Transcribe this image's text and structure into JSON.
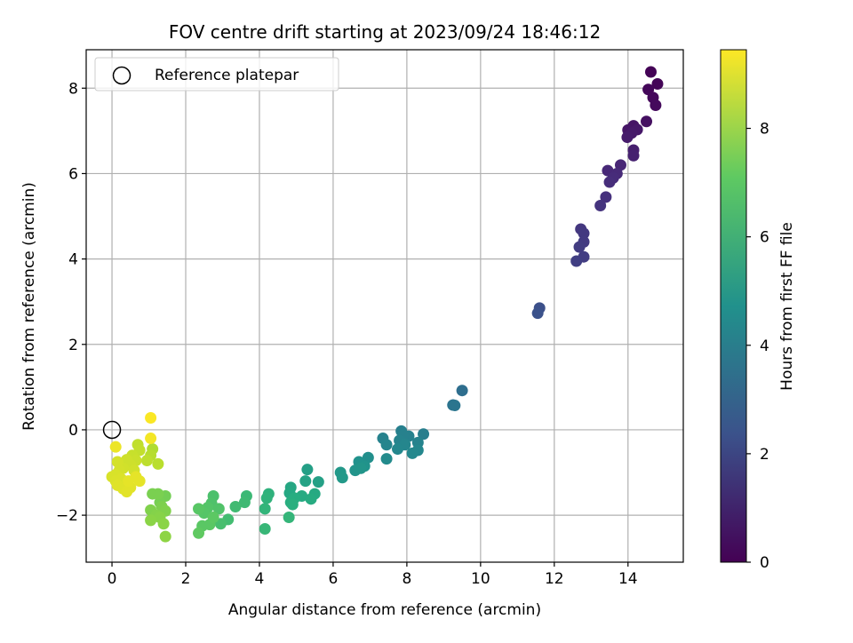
{
  "chart_data": {
    "type": "scatter",
    "title": "FOV centre drift starting at 2023/09/24 18:46:12",
    "xlabel": "Angular distance from reference (arcmin)",
    "ylabel": "Rotation from reference (arcmin)",
    "xlim": [
      -0.7,
      15.5
    ],
    "ylim": [
      -3.1,
      8.9
    ],
    "xticks": [
      0,
      2,
      4,
      6,
      8,
      10,
      12,
      14
    ],
    "xtick_labels": [
      "0",
      "2",
      "4",
      "6",
      "8",
      "10",
      "12",
      "14"
    ],
    "yticks": [
      -2,
      0,
      2,
      4,
      6,
      8
    ],
    "ytick_labels": [
      "−2",
      "0",
      "2",
      "4",
      "6",
      "8"
    ],
    "grid": true,
    "legend": {
      "placement": "upper-left",
      "entries": [
        "Reference platepar"
      ]
    },
    "reference": {
      "x": 0,
      "y": 0,
      "name": "Reference platepar"
    },
    "colorbar": {
      "label": "Hours from first FF file",
      "colormap": "viridis",
      "range": [
        0,
        9.45
      ],
      "ticks": [
        0,
        2,
        4,
        6,
        8
      ],
      "tick_labels": [
        "0",
        "2",
        "4",
        "6",
        "8"
      ]
    },
    "points": [
      {
        "x": 14.62,
        "y": 8.38,
        "c": 0.05
      },
      {
        "x": 14.8,
        "y": 8.1,
        "c": 0.1
      },
      {
        "x": 14.55,
        "y": 7.97,
        "c": 0.15
      },
      {
        "x": 14.68,
        "y": 7.78,
        "c": 0.2
      },
      {
        "x": 14.75,
        "y": 7.6,
        "c": 0.25
      },
      {
        "x": 14.5,
        "y": 7.22,
        "c": 0.4
      },
      {
        "x": 14.15,
        "y": 7.12,
        "c": 0.5
      },
      {
        "x": 14.0,
        "y": 7.02,
        "c": 0.55
      },
      {
        "x": 14.25,
        "y": 7.03,
        "c": 0.6
      },
      {
        "x": 14.1,
        "y": 6.95,
        "c": 0.65
      },
      {
        "x": 13.98,
        "y": 6.85,
        "c": 0.7
      },
      {
        "x": 14.15,
        "y": 6.55,
        "c": 0.8
      },
      {
        "x": 14.15,
        "y": 6.42,
        "c": 0.85
      },
      {
        "x": 13.8,
        "y": 6.2,
        "c": 1.0
      },
      {
        "x": 13.45,
        "y": 6.07,
        "c": 1.05
      },
      {
        "x": 13.7,
        "y": 6.0,
        "c": 1.1
      },
      {
        "x": 13.6,
        "y": 5.9,
        "c": 1.15
      },
      {
        "x": 13.5,
        "y": 5.8,
        "c": 1.2
      },
      {
        "x": 13.4,
        "y": 5.45,
        "c": 1.3
      },
      {
        "x": 13.25,
        "y": 5.25,
        "c": 1.4
      },
      {
        "x": 12.72,
        "y": 4.7,
        "c": 1.5
      },
      {
        "x": 12.8,
        "y": 4.6,
        "c": 1.55
      },
      {
        "x": 12.8,
        "y": 4.4,
        "c": 1.6
      },
      {
        "x": 12.68,
        "y": 4.28,
        "c": 1.65
      },
      {
        "x": 12.8,
        "y": 4.05,
        "c": 1.7
      },
      {
        "x": 12.6,
        "y": 3.95,
        "c": 1.75
      },
      {
        "x": 11.6,
        "y": 2.85,
        "c": 2.3
      },
      {
        "x": 11.55,
        "y": 2.73,
        "c": 2.35
      },
      {
        "x": 9.5,
        "y": 0.92,
        "c": 3.4
      },
      {
        "x": 9.25,
        "y": 0.58,
        "c": 3.6
      },
      {
        "x": 9.3,
        "y": 0.57,
        "c": 3.65
      },
      {
        "x": 8.45,
        "y": -0.1,
        "c": 4.0
      },
      {
        "x": 7.85,
        "y": -0.03,
        "c": 4.05
      },
      {
        "x": 8.05,
        "y": -0.15,
        "c": 4.1
      },
      {
        "x": 7.9,
        "y": -0.12,
        "c": 4.1
      },
      {
        "x": 7.35,
        "y": -0.2,
        "c": 4.15
      },
      {
        "x": 7.8,
        "y": -0.25,
        "c": 4.2
      },
      {
        "x": 8.3,
        "y": -0.3,
        "c": 4.2
      },
      {
        "x": 7.45,
        "y": -0.35,
        "c": 4.25
      },
      {
        "x": 7.95,
        "y": -0.35,
        "c": 4.3
      },
      {
        "x": 7.75,
        "y": -0.45,
        "c": 4.35
      },
      {
        "x": 8.3,
        "y": -0.48,
        "c": 4.35
      },
      {
        "x": 8.15,
        "y": -0.55,
        "c": 4.4
      },
      {
        "x": 7.45,
        "y": -0.68,
        "c": 4.5
      },
      {
        "x": 6.95,
        "y": -0.65,
        "c": 4.65
      },
      {
        "x": 6.7,
        "y": -0.75,
        "c": 4.75
      },
      {
        "x": 6.85,
        "y": -0.85,
        "c": 4.8
      },
      {
        "x": 6.6,
        "y": -0.95,
        "c": 4.85
      },
      {
        "x": 6.75,
        "y": -0.9,
        "c": 4.9
      },
      {
        "x": 6.2,
        "y": -1.0,
        "c": 5.0
      },
      {
        "x": 6.25,
        "y": -1.12,
        "c": 5.05
      },
      {
        "x": 5.3,
        "y": -0.93,
        "c": 5.3
      },
      {
        "x": 5.6,
        "y": -1.22,
        "c": 5.35
      },
      {
        "x": 5.25,
        "y": -1.2,
        "c": 5.4
      },
      {
        "x": 4.85,
        "y": -1.35,
        "c": 5.6
      },
      {
        "x": 4.82,
        "y": -1.48,
        "c": 5.65
      },
      {
        "x": 5.5,
        "y": -1.5,
        "c": 5.7
      },
      {
        "x": 5.15,
        "y": -1.55,
        "c": 5.75
      },
      {
        "x": 5.4,
        "y": -1.62,
        "c": 5.8
      },
      {
        "x": 4.95,
        "y": -1.6,
        "c": 5.85
      },
      {
        "x": 4.85,
        "y": -1.7,
        "c": 5.9
      },
      {
        "x": 4.9,
        "y": -1.75,
        "c": 5.95
      },
      {
        "x": 4.25,
        "y": -1.5,
        "c": 6.05
      },
      {
        "x": 4.2,
        "y": -1.6,
        "c": 6.1
      },
      {
        "x": 4.15,
        "y": -1.85,
        "c": 6.15
      },
      {
        "x": 4.8,
        "y": -2.05,
        "c": 6.2
      },
      {
        "x": 4.15,
        "y": -2.32,
        "c": 6.25
      },
      {
        "x": 3.65,
        "y": -1.55,
        "c": 6.35
      },
      {
        "x": 3.6,
        "y": -1.7,
        "c": 6.4
      },
      {
        "x": 3.35,
        "y": -1.8,
        "c": 6.45
      },
      {
        "x": 3.15,
        "y": -2.1,
        "c": 6.5
      },
      {
        "x": 2.95,
        "y": -2.2,
        "c": 6.6
      },
      {
        "x": 2.75,
        "y": -1.55,
        "c": 6.7
      },
      {
        "x": 2.7,
        "y": -1.72,
        "c": 6.75
      },
      {
        "x": 2.9,
        "y": -1.85,
        "c": 6.8
      },
      {
        "x": 2.6,
        "y": -1.82,
        "c": 6.85
      },
      {
        "x": 2.5,
        "y": -1.95,
        "c": 6.9
      },
      {
        "x": 2.35,
        "y": -1.85,
        "c": 6.95
      },
      {
        "x": 2.45,
        "y": -2.25,
        "c": 7.0
      },
      {
        "x": 2.65,
        "y": -2.22,
        "c": 7.0
      },
      {
        "x": 2.75,
        "y": -2.05,
        "c": 7.05
      },
      {
        "x": 2.35,
        "y": -2.42,
        "c": 7.1
      },
      {
        "x": 1.45,
        "y": -1.55,
        "c": 7.4
      },
      {
        "x": 1.3,
        "y": -1.7,
        "c": 7.45
      },
      {
        "x": 1.1,
        "y": -1.5,
        "c": 7.5
      },
      {
        "x": 1.25,
        "y": -1.5,
        "c": 7.5
      },
      {
        "x": 1.35,
        "y": -1.8,
        "c": 7.55
      },
      {
        "x": 1.05,
        "y": -1.88,
        "c": 7.6
      },
      {
        "x": 1.45,
        "y": -1.9,
        "c": 7.6
      },
      {
        "x": 1.2,
        "y": -2.0,
        "c": 7.65
      },
      {
        "x": 1.3,
        "y": -2.05,
        "c": 7.7
      },
      {
        "x": 1.05,
        "y": -2.12,
        "c": 7.75
      },
      {
        "x": 1.4,
        "y": -2.2,
        "c": 7.75
      },
      {
        "x": 1.45,
        "y": -2.5,
        "c": 7.8
      },
      {
        "x": 1.1,
        "y": -0.45,
        "c": 8.3
      },
      {
        "x": 1.05,
        "y": -0.6,
        "c": 8.4
      },
      {
        "x": 1.25,
        "y": -0.8,
        "c": 8.45
      },
      {
        "x": 0.95,
        "y": -0.72,
        "c": 8.5
      },
      {
        "x": 0.7,
        "y": -0.35,
        "c": 8.55
      },
      {
        "x": 0.75,
        "y": -0.48,
        "c": 8.6
      },
      {
        "x": 0.55,
        "y": -0.6,
        "c": 8.65
      },
      {
        "x": 0.65,
        "y": -0.72,
        "c": 8.7
      },
      {
        "x": 0.5,
        "y": -0.82,
        "c": 8.75
      },
      {
        "x": 0.4,
        "y": -0.7,
        "c": 8.75
      },
      {
        "x": 0.3,
        "y": -0.9,
        "c": 8.8
      },
      {
        "x": 0.6,
        "y": -0.95,
        "c": 8.8
      },
      {
        "x": 0.15,
        "y": -0.75,
        "c": 8.85
      },
      {
        "x": 0.2,
        "y": -0.95,
        "c": 8.85
      },
      {
        "x": 0.1,
        "y": -1.05,
        "c": 8.9
      },
      {
        "x": 0.0,
        "y": -1.1,
        "c": 8.9
      },
      {
        "x": 0.1,
        "y": -1.2,
        "c": 8.95
      },
      {
        "x": 0.25,
        "y": -1.15,
        "c": 8.95
      },
      {
        "x": 0.15,
        "y": -1.3,
        "c": 9.0
      },
      {
        "x": 0.3,
        "y": -1.38,
        "c": 9.0
      },
      {
        "x": 0.4,
        "y": -1.45,
        "c": 9.05
      },
      {
        "x": 0.5,
        "y": -1.35,
        "c": 9.05
      },
      {
        "x": 0.65,
        "y": -1.1,
        "c": 9.1
      },
      {
        "x": 0.75,
        "y": -1.2,
        "c": 9.1
      },
      {
        "x": 0.45,
        "y": -1.2,
        "c": 9.1
      },
      {
        "x": 0.1,
        "y": -0.4,
        "c": 9.2
      },
      {
        "x": 1.05,
        "y": -0.2,
        "c": 9.3
      },
      {
        "x": 1.05,
        "y": 0.28,
        "c": 9.4
      }
    ]
  }
}
